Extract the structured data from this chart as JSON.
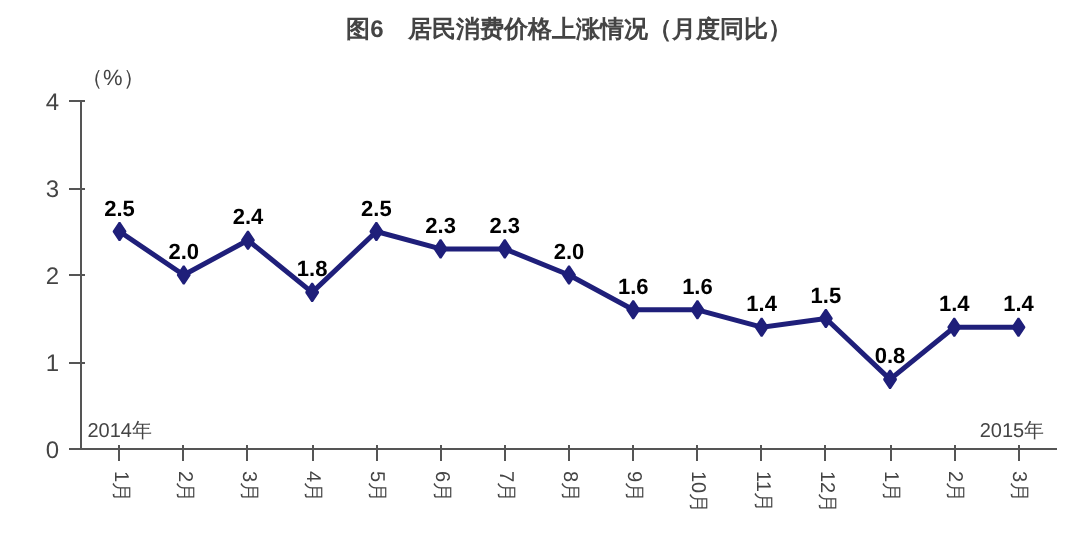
{
  "chart_data": {
    "type": "line",
    "title": "图6　居民消费价格上涨情况（月度同比）",
    "ylabel": "（%）",
    "categories": [
      "1月",
      "2月",
      "3月",
      "4月",
      "5月",
      "6月",
      "7月",
      "8月",
      "9月",
      "10月",
      "11月",
      "12月",
      "1月",
      "2月",
      "3月"
    ],
    "series": [
      {
        "color": "#1f1f7a",
        "values": [
          2.5,
          2.0,
          2.4,
          1.8,
          2.5,
          2.3,
          2.3,
          2.0,
          1.6,
          1.6,
          1.4,
          1.5,
          0.8,
          1.4,
          1.4
        ],
        "value_labels": [
          "2.5",
          "2.0",
          "2.4",
          "1.8",
          "2.5",
          "2.3",
          "2.3",
          "2.0",
          "1.6",
          "1.6",
          "1.4",
          "1.5",
          "0.8",
          "1.4",
          "1.4"
        ]
      }
    ],
    "ylim": [
      0,
      4
    ],
    "yticks": [
      0,
      1,
      2,
      3,
      4
    ],
    "grid": false,
    "marker": "diamond",
    "line_style": "solid",
    "annotations": [
      "2014年",
      "2015年"
    ]
  }
}
